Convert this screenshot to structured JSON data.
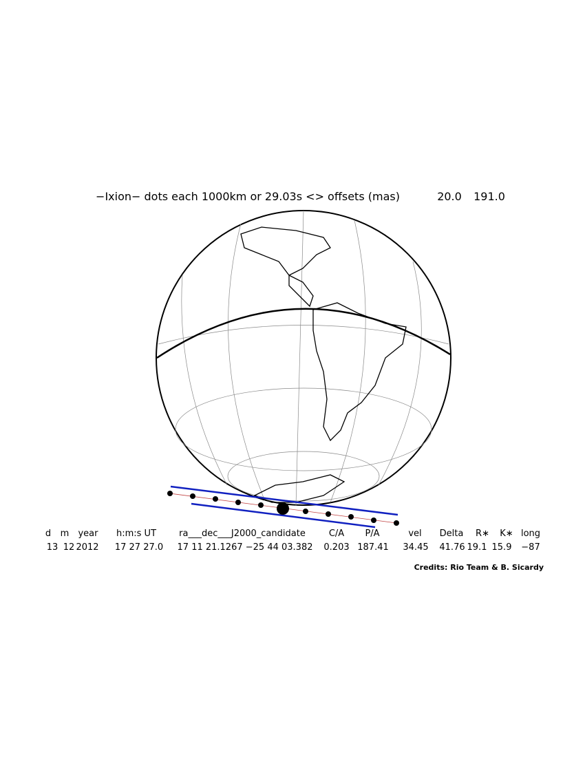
{
  "header": {
    "title": "−Ixion−  dots each 1000km or 29.03s <> offsets (mas)",
    "offsets": [
      "20.0",
      "191.0"
    ]
  },
  "table": {
    "headers": [
      "d",
      "m",
      "year",
      "h:m:s UT",
      "ra___dec___J2000_candidate",
      "C/A",
      "P/A",
      "vel",
      "Delta",
      "R∗",
      "K∗",
      "long"
    ],
    "rows": [
      [
        "13",
        "12",
        "2012",
        "17 27 27.0",
        "17 11 21.1267 −25 44 03.382",
        "0.203",
        "187.41",
        "34.45",
        "41.76",
        "19.1",
        "15.9",
        "−87"
      ]
    ]
  },
  "credits": "Credits: Rio Team & B. Sicardy"
}
